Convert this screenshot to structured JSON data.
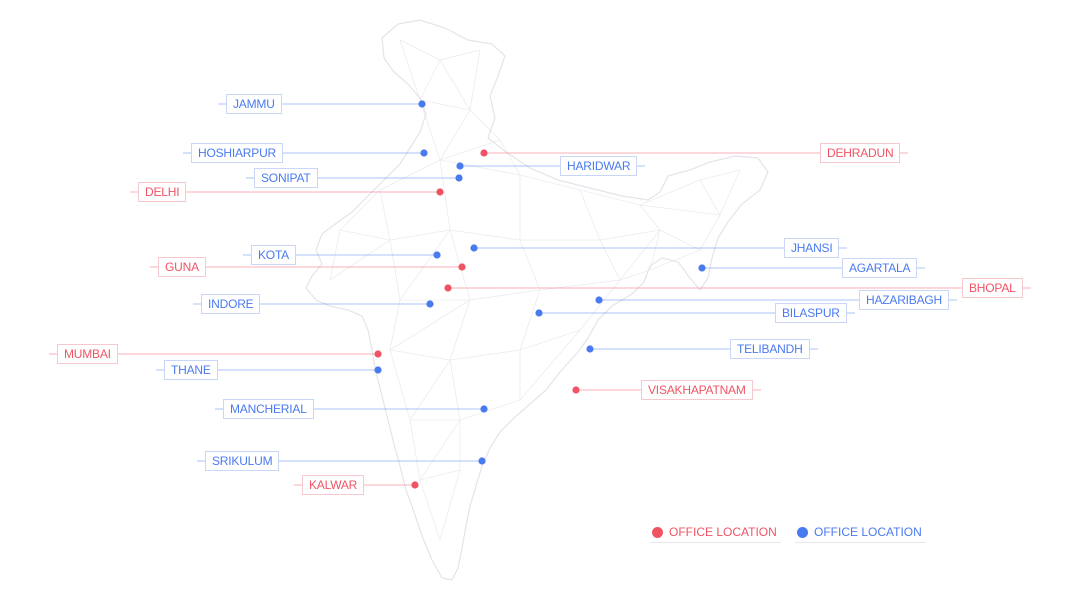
{
  "colors": {
    "red": "#f05464",
    "blue": "#4a7af0",
    "outline": "#e4e4ea",
    "mesh": "#ececf0"
  },
  "locations": [
    {
      "name": "JAMMU",
      "color": "blue",
      "side": "left"
    },
    {
      "name": "HOSHIARPUR",
      "color": "blue",
      "side": "left"
    },
    {
      "name": "DEHRADUN",
      "color": "red",
      "side": "right"
    },
    {
      "name": "HARIDWAR",
      "color": "blue",
      "side": "right"
    },
    {
      "name": "SONIPAT",
      "color": "blue",
      "side": "left"
    },
    {
      "name": "DELHI",
      "color": "red",
      "side": "left"
    },
    {
      "name": "JHANSI",
      "color": "blue",
      "side": "right"
    },
    {
      "name": "KOTA",
      "color": "blue",
      "side": "left"
    },
    {
      "name": "AGARTALA",
      "color": "blue",
      "side": "right"
    },
    {
      "name": "GUNA",
      "color": "red",
      "side": "left"
    },
    {
      "name": "BHOPAL",
      "color": "red",
      "side": "right"
    },
    {
      "name": "HAZARIBAGH",
      "color": "blue",
      "side": "right"
    },
    {
      "name": "INDORE",
      "color": "blue",
      "side": "left"
    },
    {
      "name": "BILASPUR",
      "color": "blue",
      "side": "right"
    },
    {
      "name": "TELIBANDH",
      "color": "blue",
      "side": "right"
    },
    {
      "name": "MUMBAI",
      "color": "red",
      "side": "left"
    },
    {
      "name": "THANE",
      "color": "blue",
      "side": "left"
    },
    {
      "name": "VISAKHAPATNAM",
      "color": "red",
      "side": "right"
    },
    {
      "name": "MANCHERIAL",
      "color": "blue",
      "side": "left"
    },
    {
      "name": "SRIKULUM",
      "color": "blue",
      "side": "left"
    },
    {
      "name": "KALWAR",
      "color": "red",
      "side": "left"
    }
  ],
  "legend": [
    {
      "label": "OFFICE LOCATION",
      "color": "red"
    },
    {
      "label": "OFFICE LOCATION",
      "color": "blue"
    }
  ]
}
